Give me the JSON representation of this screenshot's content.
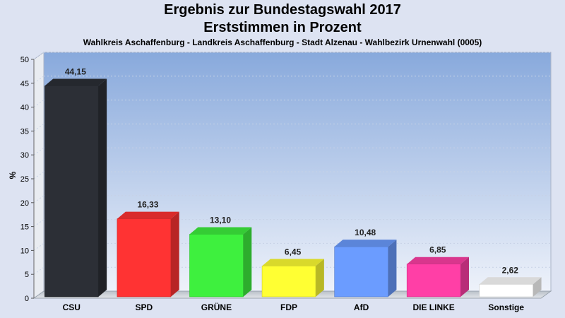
{
  "chart_data": {
    "type": "bar",
    "title": "Ergebnis zur Bundestagswahl 2017",
    "subtitle": "Erststimmen in Prozent",
    "caption": "Wahlkreis Aschaffenburg - Landkreis Aschaffenburg - Stadt Alzenau - Wahlbezirk Urnenwahl (0005)",
    "ylabel": "%",
    "ylim": [
      0,
      50
    ],
    "yticks": [
      0,
      5,
      10,
      15,
      20,
      25,
      30,
      35,
      40,
      45,
      50
    ],
    "categories": [
      "CSU",
      "SPD",
      "GRÜNE",
      "FDP",
      "AfD",
      "DIE LINKE",
      "Sonstige"
    ],
    "values": [
      44.15,
      16.33,
      13.1,
      6.45,
      10.48,
      6.85,
      2.62
    ],
    "value_labels": [
      "44,15",
      "16,33",
      "13,10",
      "6,45",
      "10,48",
      "6,85",
      "2,62"
    ],
    "colors": [
      "#2c2f36",
      "#ff3333",
      "#3ef03e",
      "#ffff33",
      "#6b9cff",
      "#ff3fa6",
      "#ffffff"
    ],
    "grid": true
  }
}
